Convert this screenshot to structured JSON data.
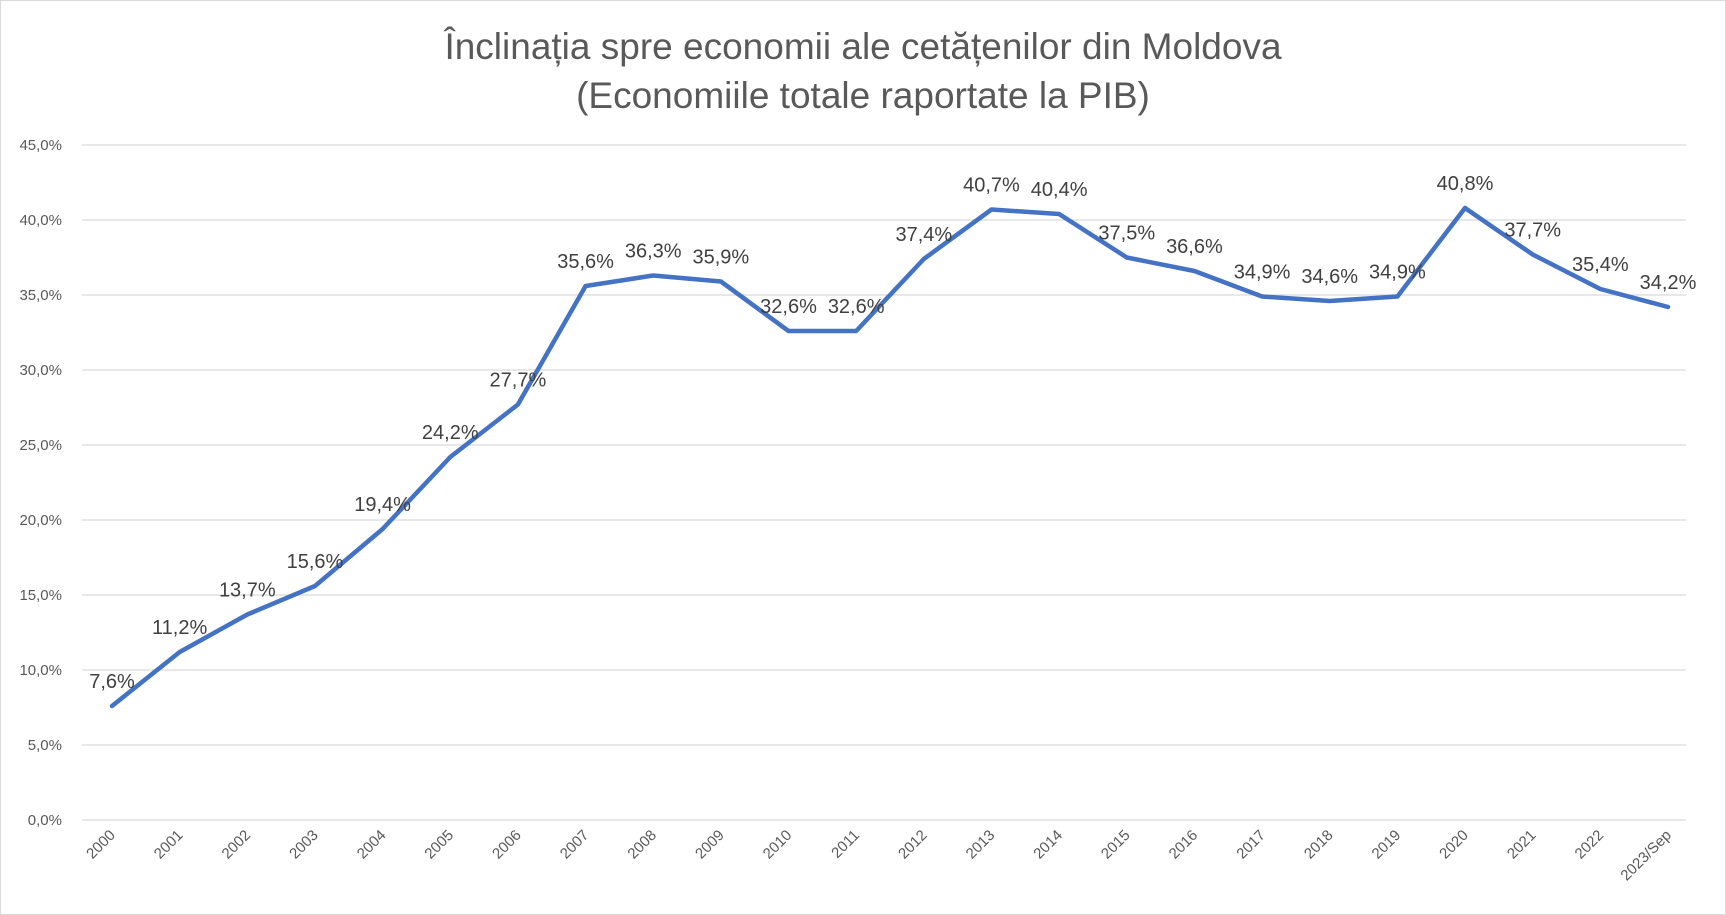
{
  "chart_data": {
    "type": "line",
    "title": "Înclinația spre economii ale cetățenilor din Moldova",
    "subtitle": "(Economiile totale raportate la PIB)",
    "xlabel": "",
    "ylabel": "",
    "ylim": [
      0,
      45
    ],
    "ytick_values": [
      0,
      5,
      10,
      15,
      20,
      25,
      30,
      35,
      40,
      45
    ],
    "ytick_labels": [
      "0,0%",
      "5,0%",
      "10,0%",
      "15,0%",
      "20,0%",
      "25,0%",
      "30,0%",
      "35,0%",
      "40,0%",
      "45,0%"
    ],
    "grid": true,
    "legend": "none",
    "categories": [
      "2000",
      "2001",
      "2002",
      "2003",
      "2004",
      "2005",
      "2006",
      "2007",
      "2008",
      "2009",
      "2010",
      "2011",
      "2012",
      "2013",
      "2014",
      "2015",
      "2016",
      "2017",
      "2018",
      "2019",
      "2020",
      "2021",
      "2022",
      "2023/Sep"
    ],
    "series": [
      {
        "name": "Economiile totale raportate la PIB",
        "color": "#4472c4",
        "values": [
          7.6,
          11.2,
          13.7,
          15.6,
          19.4,
          24.2,
          27.7,
          35.6,
          36.3,
          35.9,
          32.6,
          32.6,
          37.4,
          40.7,
          40.4,
          37.5,
          36.6,
          34.9,
          34.6,
          34.9,
          40.8,
          37.7,
          35.4,
          34.2
        ],
        "data_labels": [
          "7,6%",
          "11,2%",
          "13,7%",
          "15,6%",
          "19,4%",
          "24,2%",
          "27,7%",
          "35,6%",
          "36,3%",
          "35,9%",
          "32,6%",
          "32,6%",
          "37,4%",
          "40,7%",
          "40,4%",
          "37,5%",
          "36,6%",
          "34,9%",
          "34,6%",
          "34,9%",
          "40,8%",
          "37,7%",
          "35,4%",
          "34,2%"
        ]
      }
    ]
  }
}
